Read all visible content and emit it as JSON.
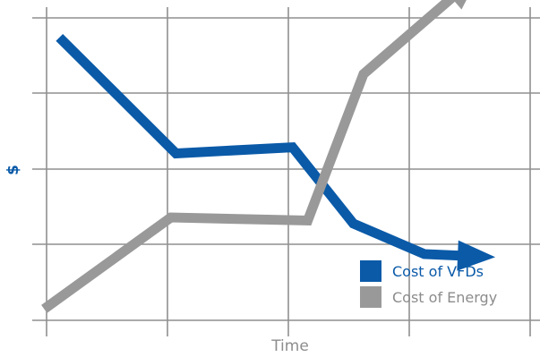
{
  "chart_data": {
    "type": "line",
    "title": "",
    "xlabel": "Time",
    "ylabel": "$",
    "xlim": [
      0,
      100
    ],
    "ylim": [
      0,
      100
    ],
    "grid": true,
    "legend_position": "bottom-right",
    "series": [
      {
        "name": "Cost of VFDs",
        "color": "#0a5aa8",
        "points": [
          [
            5,
            93
          ],
          [
            28,
            55
          ],
          [
            51,
            57
          ],
          [
            63,
            32
          ],
          [
            77,
            22
          ],
          [
            91,
            21
          ]
        ]
      },
      {
        "name": "Cost of Energy",
        "color": "#999999",
        "points": [
          [
            2,
            4
          ],
          [
            27,
            34
          ],
          [
            54,
            33
          ],
          [
            65,
            81
          ],
          [
            88,
            114
          ]
        ]
      }
    ]
  }
}
